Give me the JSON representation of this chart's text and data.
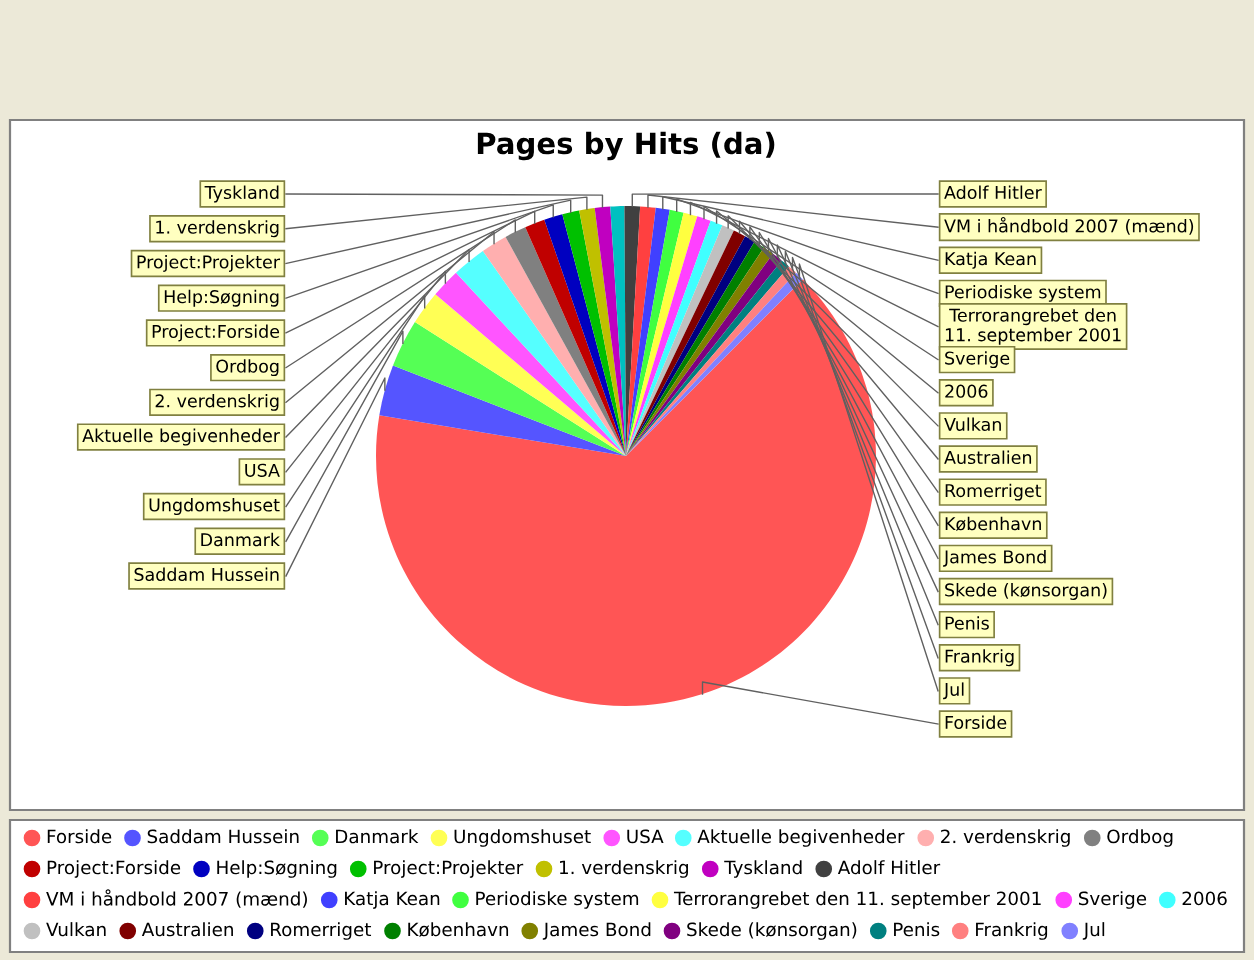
{
  "chart_data": {
    "type": "pie",
    "title": "Pages by Hits (da)",
    "categories": [
      "Forside",
      "Saddam Hussein",
      "Danmark",
      "Ungdomshuset",
      "USA",
      "Aktuelle begivenheder",
      "2. verdenskrig",
      "Ordbog",
      "Project:Forside",
      "Help:Søgning",
      "Project:Projekter",
      "1. verdenskrig",
      "Tyskland",
      null,
      "Adolf Hitler",
      "VM i håndbold 2007 (mænd)",
      "Katja Kean",
      "Periodiske system",
      "Terrorangrebet den 11. september 2001",
      "Sverige",
      "2006",
      "Vulkan",
      "Australien",
      "Romerriget",
      "København",
      "James Bond",
      "Skede (kønsorgan)",
      "Penis",
      "Frankrig",
      "Jul"
    ],
    "values": [
      65.1,
      3.3,
      3.1,
      2.2,
      1.9,
      2.2,
      1.7,
      1.4,
      1.3,
      1.2,
      1.1,
      1.0,
      1.0,
      0.9,
      1.0,
      1.0,
      0.9,
      0.9,
      0.9,
      0.9,
      0.8,
      0.8,
      0.8,
      0.7,
      0.7,
      0.7,
      0.7,
      0.6,
      0.6,
      0.6
    ],
    "colors": [
      "#ff5555",
      "#5555ff",
      "#55ff55",
      "#ffff55",
      "#ff55ff",
      "#55ffff",
      "#ffafaf",
      "#808080",
      "#c00000",
      "#0000c0",
      "#00c000",
      "#c0c000",
      "#c000c0",
      "#00c0c0",
      "#404040",
      "#ff4040",
      "#4040ff",
      "#40ff40",
      "#ffff40",
      "#ff40ff",
      "#40ffff",
      "#c0c0c0",
      "#800000",
      "#000080",
      "#008000",
      "#808000",
      "#800080",
      "#008080",
      "#ff8080",
      "#8080ff"
    ],
    "legend": "bottom"
  }
}
